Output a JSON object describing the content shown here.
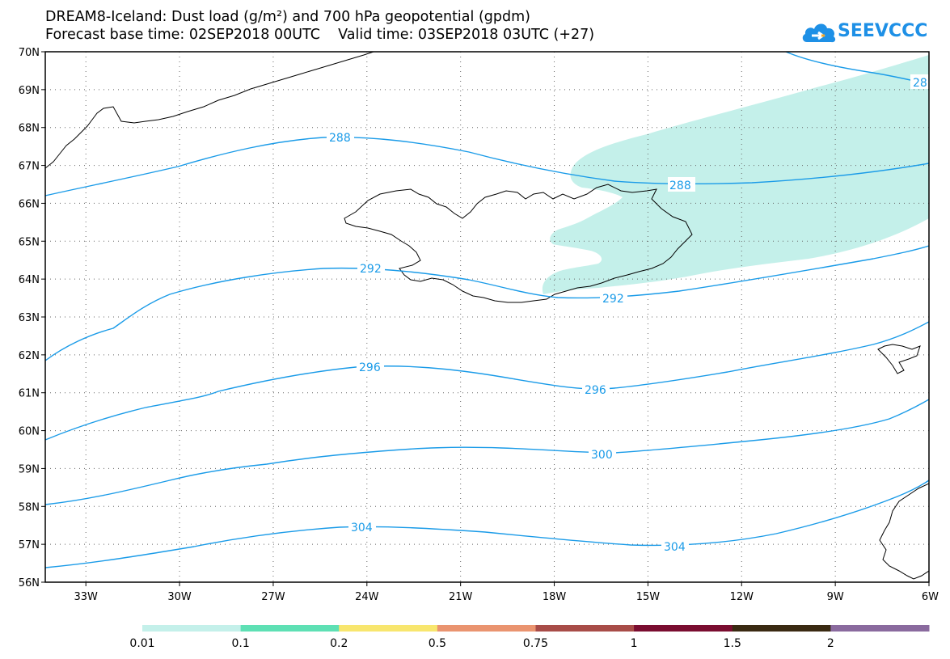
{
  "title": {
    "line1": "DREAM8-Iceland: Dust load (g/m²) and 700 hPa geopotential (gpdm)",
    "line2": "Forecast base time: 02SEP2018 00UTC    Valid time: 03SEP2018 03UTC (+27)"
  },
  "logo": {
    "text": "SEEVCCC",
    "icon": "cloud-icon",
    "color": "#1e90e6"
  },
  "map": {
    "lon_range": [
      -34.3,
      -6
    ],
    "lat_range": [
      56,
      70
    ],
    "lat_ticks": [
      "70N",
      "69N",
      "68N",
      "67N",
      "66N",
      "65N",
      "64N",
      "63N",
      "62N",
      "61N",
      "60N",
      "59N",
      "58N",
      "57N",
      "56N"
    ],
    "lon_ticks": [
      "33W",
      "30W",
      "27W",
      "24W",
      "21W",
      "18W",
      "15W",
      "12W",
      "9W",
      "6W"
    ],
    "contour_color": "#1a9be8",
    "dust_color": "#c4f0ea",
    "contour_labels": [
      "288",
      "288",
      "28",
      "292",
      "292",
      "296",
      "296",
      "300",
      "304",
      "304"
    ]
  },
  "colorbar": {
    "labels": [
      "0.01",
      "0.1",
      "0.2",
      "0.5",
      "0.75",
      "1",
      "1.5",
      "2"
    ],
    "colors": [
      "#c4f0ea",
      "#5ee0b4",
      "#f8e66e",
      "#ea9470",
      "#a84c48",
      "#7a0d30",
      "#3a2a12",
      "#8a6a9e"
    ]
  }
}
